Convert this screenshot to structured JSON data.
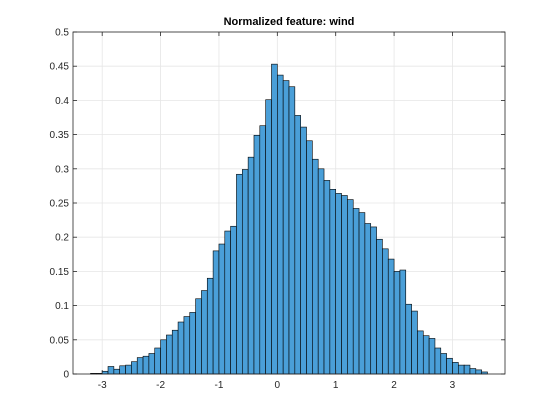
{
  "chart_data": {
    "type": "bar",
    "title": "Normalized feature: wind",
    "xlabel": "",
    "ylabel": "",
    "xlim": [
      -3.5,
      3.9
    ],
    "ylim": [
      0,
      0.5
    ],
    "xticks": [
      -3,
      -2,
      -1,
      0,
      1,
      2,
      3
    ],
    "yticks": [
      0,
      0.05,
      0.1,
      0.15,
      0.2,
      0.25,
      0.3,
      0.35,
      0.4,
      0.45,
      0.5
    ],
    "grid": true,
    "bar_color": "#4A9FD8",
    "edge_color": "#000000",
    "bin_edges": [
      -3.2,
      -3.1,
      -3.0,
      -2.9,
      -2.8,
      -2.7,
      -2.6,
      -2.5,
      -2.4,
      -2.3,
      -2.2,
      -2.1,
      -2.0,
      -1.9,
      -1.8,
      -1.7,
      -1.6,
      -1.5,
      -1.4,
      -1.3,
      -1.2,
      -1.1,
      -1.0,
      -0.9,
      -0.8,
      -0.7,
      -0.6,
      -0.5,
      -0.4,
      -0.3,
      -0.2,
      -0.1,
      0.0,
      0.1,
      0.2,
      0.3,
      0.4,
      0.5,
      0.6,
      0.7,
      0.8,
      0.9,
      1.0,
      1.1,
      1.2,
      1.3,
      1.4,
      1.5,
      1.6,
      1.7,
      1.8,
      1.9,
      2.0,
      2.1,
      2.2,
      2.3,
      2.4,
      2.5,
      2.6,
      2.7,
      2.8,
      2.9,
      3.0,
      3.1,
      3.2,
      3.3,
      3.4,
      3.5,
      3.6
    ],
    "values": [
      0.001,
      0.001,
      0.004,
      0.011,
      0.007,
      0.012,
      0.013,
      0.018,
      0.024,
      0.026,
      0.03,
      0.038,
      0.05,
      0.057,
      0.064,
      0.076,
      0.084,
      0.09,
      0.11,
      0.122,
      0.14,
      0.18,
      0.19,
      0.209,
      0.216,
      0.292,
      0.299,
      0.317,
      0.349,
      0.363,
      0.401,
      0.453,
      0.437,
      0.429,
      0.42,
      0.378,
      0.361,
      0.341,
      0.314,
      0.3,
      0.283,
      0.27,
      0.264,
      0.261,
      0.255,
      0.242,
      0.236,
      0.22,
      0.215,
      0.197,
      0.183,
      0.168,
      0.15,
      0.152,
      0.102,
      0.092,
      0.063,
      0.056,
      0.052,
      0.038,
      0.03,
      0.023,
      0.017,
      0.013,
      0.013,
      0.008,
      0.006,
      0.003
    ]
  }
}
